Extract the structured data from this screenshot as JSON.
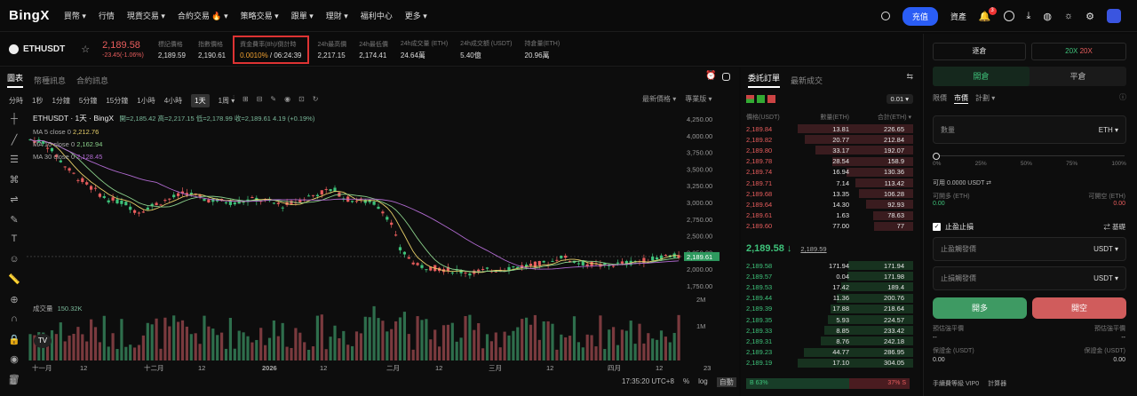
{
  "nav": {
    "logo": "BingX",
    "items": [
      "買幣 ▾",
      "行情",
      "現貨交易 ▾",
      "合約交易 🔥 ▾",
      "策略交易 ▾",
      "跟單 ▾",
      "理財 ▾",
      "福利中心",
      "更多 ▾"
    ],
    "deposit": "充值",
    "assets": "資產",
    "badge": "3"
  },
  "ticker": {
    "symbol": "ETHUSDT",
    "price": "2,189.58",
    "change": "-23.45(-1.06%)",
    "stats": [
      {
        "l": "標記價格",
        "v": "2,189.59"
      },
      {
        "l": "指數價格",
        "v": "2,190.61"
      },
      {
        "l": "資金費率(8h)/倒計時",
        "v1": "0.0010%",
        "v2": " / 06:24:39"
      },
      {
        "l": "24h最高價",
        "v": "2,217.15"
      },
      {
        "l": "24h最低價",
        "v": "2,174.41"
      },
      {
        "l": "24h成交量 (ETH)",
        "v": "24.64萬"
      },
      {
        "l": "24h成交額 (USDT)",
        "v": "5.40億"
      },
      {
        "l": "持倉量(ETH)",
        "v": "20.96萬"
      }
    ]
  },
  "chart": {
    "tabs": [
      "圖表",
      "幣種訊息",
      "合約訊息"
    ],
    "timeframes": [
      "分時",
      "1秒",
      "1分鐘",
      "5分鐘",
      "15分鐘",
      "1小時",
      "4小時",
      "1天",
      "1周 ▾"
    ],
    "right": [
      "最新價格 ▾",
      "專業版 ▾"
    ],
    "title": "ETHUSDT · 1天 · BingX",
    "ohlc": "開=2,185.42 高=2,217.15 低=2,178.99 收=2,189.61 4.19 (+0.19%)",
    "ma5": "MA 5 close 0",
    "ma5v": "2,212.76",
    "ma10": "MA 10 close 0",
    "ma10v": "2,162.94",
    "ma30": "MA 30 close 0",
    "ma30v": "2,128.45",
    "vol": "成交量",
    "volv": "150.32K",
    "yticks": [
      "4,250.00",
      "4,000.00",
      "3,750.00",
      "3,500.00",
      "3,250.00",
      "3,000.00",
      "2,750.00",
      "2,500.00",
      "2,250.00",
      "2,000.00",
      "1,750.00"
    ],
    "lastprice": "2,189.61",
    "voltick": [
      "2M",
      "1M"
    ],
    "xticks": [
      "十一月",
      "12",
      "十二月",
      "12",
      "2026",
      "12",
      "二月",
      "12",
      "三月",
      "12",
      "四月",
      "12",
      "23"
    ],
    "time": "17:35:20 UTC+8",
    "pct": "%",
    "log": "log",
    "auto": "自動"
  },
  "orderbook": {
    "tabs": [
      "委託訂單",
      "最新成交"
    ],
    "step": "0.01 ▾",
    "hdr": [
      "價格(USDT)",
      "數量(ETH)",
      "合計(ETH) ▾"
    ],
    "asks": [
      [
        "2,189.84",
        "13.81",
        "226.65"
      ],
      [
        "2,189.82",
        "20.77",
        "212.84"
      ],
      [
        "2,189.80",
        "33.17",
        "192.07"
      ],
      [
        "2,189.78",
        "28.54",
        "158.9"
      ],
      [
        "2,189.74",
        "16.94",
        "130.36"
      ],
      [
        "2,189.71",
        "7.14",
        "113.42"
      ],
      [
        "2,189.68",
        "13.35",
        "106.28"
      ],
      [
        "2,189.64",
        "14.30",
        "92.93"
      ],
      [
        "2,189.61",
        "1.63",
        "78.63"
      ],
      [
        "2,189.60",
        "77.00",
        "77"
      ]
    ],
    "mid": "2,189.58 ↓",
    "midmark": "2,189.59",
    "bids": [
      [
        "2,189.58",
        "171.94",
        "171.94"
      ],
      [
        "2,189.57",
        "0.04",
        "171.98"
      ],
      [
        "2,189.53",
        "17.42",
        "189.4"
      ],
      [
        "2,189.44",
        "11.36",
        "200.76"
      ],
      [
        "2,189.39",
        "17.88",
        "218.64"
      ],
      [
        "2,189.35",
        "5.93",
        "224.57"
      ],
      [
        "2,189.33",
        "8.85",
        "233.42"
      ],
      [
        "2,189.31",
        "8.76",
        "242.18"
      ],
      [
        "2,189.23",
        "44.77",
        "286.95"
      ],
      [
        "2,189.19",
        "17.10",
        "304.05"
      ]
    ],
    "b": "B 63%",
    "s": "37% S"
  },
  "trade": {
    "mode": "逐倉",
    "lev1": "20X",
    "lev2": "20X",
    "open": "開倉",
    "close": "平倉",
    "types": [
      "限價",
      "市價",
      "計劃 ▾"
    ],
    "qty": "數量",
    "unit": "ETH ▾",
    "marks": [
      "0%",
      "25%",
      "50%",
      "75%",
      "100%"
    ],
    "avail": "可用 0.0000 USDT ⇄",
    "canLong": "可開多 (ETH)",
    "canShort": "可開空 (ETH)",
    "lv": "0.00",
    "rv": "0.00",
    "tpsl": "止盈止損",
    "adv": "⇄ 基礎",
    "tp": "止盈觸發價",
    "sl": "止損觸發價",
    "usdt": "USDT ▾",
    "long": "開多",
    "short": "開空",
    "liqL": "預估強平價",
    "liqR": "預估強平價",
    "dash": "--",
    "margin": "保證金 (USDT)",
    "mv": "0.00",
    "fee": "手續費等級 VIP0",
    "calc": "計算器"
  }
}
